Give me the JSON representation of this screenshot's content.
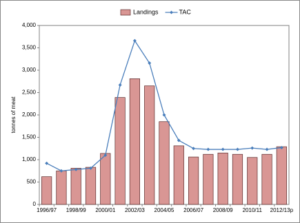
{
  "chart_data": {
    "type": "bar",
    "y_label": "tonnes of meat",
    "categories": [
      "1996/97",
      null,
      "1998/99",
      null,
      "2000/01",
      null,
      "2002/03",
      null,
      "2004/05",
      null,
      "2006/07",
      null,
      "2008/09",
      null,
      "2010/11",
      null,
      "2012/13p"
    ],
    "series": [
      {
        "name": "Landings",
        "type": "bar",
        "color": "#d99694",
        "values": [
          620,
          750,
          810,
          830,
          1140,
          2390,
          2810,
          2650,
          1850,
          1310,
          1060,
          1120,
          1150,
          1120,
          1050,
          1120,
          1290
        ]
      },
      {
        "name": "TAC",
        "type": "line",
        "color": "#4a7ebb",
        "values": [
          920,
          750,
          780,
          810,
          1100,
          2670,
          3660,
          3160,
          2000,
          1430,
          1250,
          1230,
          1230,
          1230,
          1260,
          1230,
          1270
        ]
      }
    ],
    "ylim": [
      0,
      4000
    ],
    "yticks": [
      0,
      500,
      {
        "value": 1000,
        "label": "1,000"
      },
      {
        "value": 1500,
        "label": "1,500"
      },
      {
        "value": 2000,
        "label": "2,000"
      },
      {
        "value": 2500,
        "label": "2,500"
      },
      {
        "value": 3000,
        "label": "3,000"
      },
      {
        "value": 3500,
        "label": "3,500"
      },
      {
        "value": 4000,
        "label": "4,000"
      }
    ],
    "legend": "top"
  }
}
